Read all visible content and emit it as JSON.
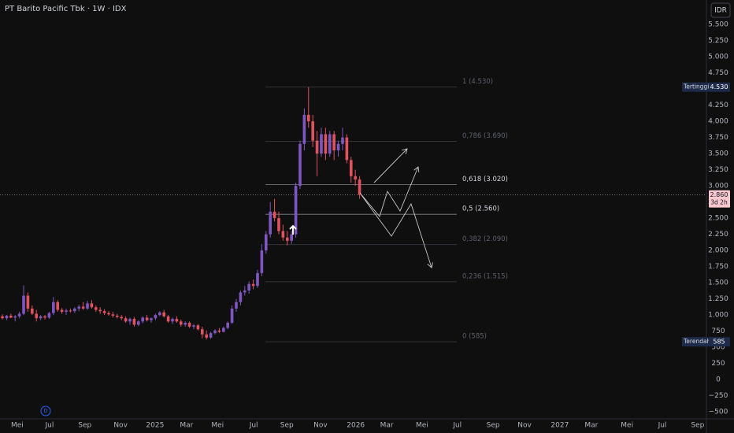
{
  "chart_data": {
    "type": "candlestick",
    "title": "PT Barito Pacific Tbk · 1W · IDX",
    "currency": "IDR",
    "marker": "D",
    "up_color": "#7e57c2",
    "down_color": "#e0525d",
    "candles": [
      [
        980,
        1010,
        930,
        950
      ],
      [
        950,
        1000,
        920,
        990
      ],
      [
        990,
        1020,
        950,
        960
      ],
      [
        960,
        1000,
        900,
        980
      ],
      [
        980,
        1050,
        950,
        1020
      ],
      [
        1020,
        1460,
        1000,
        1300
      ],
      [
        1300,
        1350,
        1050,
        1100
      ],
      [
        1100,
        1150,
        1000,
        1020
      ],
      [
        1020,
        1080,
        900,
        950
      ],
      [
        950,
        1000,
        920,
        980
      ],
      [
        980,
        1000,
        930,
        960
      ],
      [
        960,
        1050,
        940,
        1030
      ],
      [
        1030,
        1280,
        1000,
        1200
      ],
      [
        1200,
        1230,
        1050,
        1080
      ],
      [
        1080,
        1110,
        1020,
        1050
      ],
      [
        1050,
        1100,
        1000,
        1070
      ],
      [
        1070,
        1100,
        1040,
        1060
      ],
      [
        1060,
        1120,
        1030,
        1100
      ],
      [
        1100,
        1160,
        1060,
        1130
      ],
      [
        1130,
        1200,
        1080,
        1100
      ],
      [
        1100,
        1220,
        1080,
        1180
      ],
      [
        1180,
        1230,
        1100,
        1120
      ],
      [
        1120,
        1150,
        1050,
        1080
      ],
      [
        1080,
        1120,
        1020,
        1060
      ],
      [
        1060,
        1090,
        1000,
        1030
      ],
      [
        1030,
        1060,
        990,
        1010
      ],
      [
        1010,
        1050,
        960,
        990
      ],
      [
        990,
        1020,
        950,
        970
      ],
      [
        970,
        1000,
        920,
        950
      ],
      [
        950,
        980,
        880,
        900
      ],
      [
        900,
        960,
        850,
        940
      ],
      [
        940,
        970,
        820,
        850
      ],
      [
        850,
        920,
        830,
        900
      ],
      [
        900,
        980,
        870,
        960
      ],
      [
        960,
        1000,
        900,
        920
      ],
      [
        920,
        960,
        880,
        950
      ],
      [
        950,
        1020,
        920,
        1000
      ],
      [
        1000,
        1060,
        980,
        1040
      ],
      [
        1040,
        1080,
        960,
        980
      ],
      [
        980,
        1000,
        880,
        900
      ],
      [
        900,
        960,
        860,
        940
      ],
      [
        940,
        980,
        880,
        900
      ],
      [
        900,
        930,
        820,
        850
      ],
      [
        850,
        900,
        820,
        880
      ],
      [
        880,
        900,
        800,
        820
      ],
      [
        820,
        860,
        780,
        840
      ],
      [
        840,
        860,
        760,
        780
      ],
      [
        780,
        820,
        640,
        700
      ],
      [
        700,
        760,
        620,
        650
      ],
      [
        650,
        740,
        630,
        720
      ],
      [
        720,
        780,
        700,
        760
      ],
      [
        760,
        800,
        720,
        740
      ],
      [
        740,
        820,
        730,
        800
      ],
      [
        800,
        900,
        780,
        880
      ],
      [
        880,
        1150,
        860,
        1100
      ],
      [
        1100,
        1250,
        1050,
        1200
      ],
      [
        1200,
        1380,
        1150,
        1350
      ],
      [
        1350,
        1450,
        1300,
        1380
      ],
      [
        1380,
        1520,
        1330,
        1480
      ],
      [
        1480,
        1550,
        1400,
        1450
      ],
      [
        1450,
        1700,
        1420,
        1650
      ],
      [
        1650,
        2100,
        1600,
        2000
      ],
      [
        2000,
        2300,
        1950,
        2250
      ],
      [
        2250,
        2750,
        2200,
        2600
      ],
      [
        2600,
        2800,
        2450,
        2500
      ],
      [
        2500,
        2600,
        2250,
        2300
      ],
      [
        2300,
        2400,
        2150,
        2200
      ],
      [
        2200,
        2300,
        2080,
        2150
      ],
      [
        2150,
        2300,
        2100,
        2250
      ],
      [
        2250,
        3050,
        2200,
        3000
      ],
      [
        3000,
        3700,
        2950,
        3650
      ],
      [
        3650,
        4200,
        3550,
        4100
      ],
      [
        4100,
        4530,
        3900,
        4000
      ],
      [
        4000,
        4100,
        3600,
        3700
      ],
      [
        3700,
        3850,
        3150,
        3500
      ],
      [
        3500,
        3900,
        3450,
        3800
      ],
      [
        3800,
        3900,
        3400,
        3500
      ],
      [
        3500,
        3850,
        3450,
        3800
      ],
      [
        3800,
        3850,
        3400,
        3550
      ],
      [
        3550,
        3700,
        3450,
        3650
      ],
      [
        3650,
        3900,
        3550,
        3750
      ],
      [
        3750,
        3800,
        3350,
        3400
      ],
      [
        3400,
        3450,
        3050,
        3150
      ],
      [
        3150,
        3250,
        3000,
        3100
      ],
      [
        3100,
        3150,
        2800,
        2860
      ]
    ],
    "xlim": [
      -0.56,
      165.2
    ],
    "xticks": [
      {
        "value": 3.5,
        "label": "Mei"
      },
      {
        "value": 11.1,
        "label": "Jul"
      },
      {
        "value": 19.4,
        "label": "Sep"
      },
      {
        "value": 27.8,
        "label": "Nov"
      },
      {
        "value": 35.9,
        "label": "2025"
      },
      {
        "value": 43.3,
        "label": "Mar"
      },
      {
        "value": 50.6,
        "label": "Mei"
      },
      {
        "value": 59.1,
        "label": "Jul"
      },
      {
        "value": 66.9,
        "label": "Sep"
      },
      {
        "value": 74.8,
        "label": "Nov"
      },
      {
        "value": 83.1,
        "label": "2026"
      },
      {
        "value": 90.4,
        "label": "Mar"
      },
      {
        "value": 98.7,
        "label": "Mei"
      },
      {
        "value": 107.0,
        "label": "Jul"
      },
      {
        "value": 115.4,
        "label": "Sep"
      },
      {
        "value": 122.8,
        "label": "Nov"
      },
      {
        "value": 131.1,
        "label": "2027"
      },
      {
        "value": 138.5,
        "label": "Mar"
      },
      {
        "value": 146.9,
        "label": "Mei"
      },
      {
        "value": 155.2,
        "label": "Jul"
      },
      {
        "value": 163.5,
        "label": "Sep"
      }
    ],
    "ylim": [
      -608,
      5879
    ],
    "yticks": [
      {
        "value": 5500,
        "label": "5.500"
      },
      {
        "value": 5250,
        "label": "5.250"
      },
      {
        "value": 5000,
        "label": "5.000"
      },
      {
        "value": 4750,
        "label": "4.750"
      },
      {
        "value": 4500,
        "label": "4.500"
      },
      {
        "value": 4250,
        "label": "4.250"
      },
      {
        "value": 4000,
        "label": "4.000"
      },
      {
        "value": 3750,
        "label": "3.750"
      },
      {
        "value": 3500,
        "label": "3.500"
      },
      {
        "value": 3250,
        "label": "3.250"
      },
      {
        "value": 3000,
        "label": "3.000"
      },
      {
        "value": 2750,
        "label": "2.750"
      },
      {
        "value": 2500,
        "label": "2.500"
      },
      {
        "value": 2250,
        "label": "2.250"
      },
      {
        "value": 2000,
        "label": "2.000"
      },
      {
        "value": 1750,
        "label": "1.750"
      },
      {
        "value": 1500,
        "label": "1.500"
      },
      {
        "value": 1250,
        "label": "1.250"
      },
      {
        "value": 1000,
        "label": "1.000"
      },
      750,
      500,
      250,
      0,
      {
        "value": -250,
        "label": "−250"
      },
      {
        "value": -500,
        "label": "−500"
      }
    ],
    "fib_levels": [
      {
        "label": "1 (4.530)",
        "value": 4530,
        "color": "#5d606b"
      },
      {
        "label": "0,786 (3.690)",
        "value": 3690,
        "color": "#5d606b"
      },
      {
        "label": "0,618 (3.020)",
        "value": 3020,
        "color": "#d1d4dc"
      },
      {
        "label": "0,5 (2.560)",
        "value": 2560,
        "color": "#d1d4dc"
      },
      {
        "label": "0,382 (2.090)",
        "value": 2090,
        "color": "#5d606b"
      },
      {
        "label": "0,236 (1.515)",
        "value": 1515,
        "color": "#5d606b"
      },
      {
        "label": "0 (585)",
        "value": 585,
        "color": "#5d606b"
      }
    ],
    "high_marker": {
      "name": "Tertinggi",
      "value": 4530,
      "label": "4.530"
    },
    "low_marker": {
      "name": "Terendah",
      "value": 585,
      "label": "585"
    },
    "last_price": {
      "value": 2860,
      "label": "2.860",
      "countdown": "3d 2h"
    }
  }
}
